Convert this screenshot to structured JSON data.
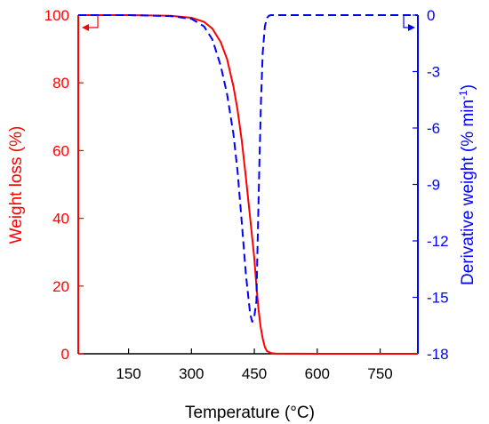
{
  "chart_data": {
    "type": "line",
    "xlabel": "Temperature (°C)",
    "xlim": [
      30,
      840
    ],
    "xticks": [
      150,
      300,
      450,
      600,
      750
    ],
    "y_left": {
      "label": "Weight loss (%)",
      "lim": [
        0,
        100
      ],
      "ticks": [
        0,
        20,
        40,
        60,
        80,
        100
      ],
      "color": "#ff0000"
    },
    "y_right": {
      "label_main": "Derivative weight (% min",
      "label_sup": "-1",
      "label_close": ")",
      "lim": [
        -18,
        0
      ],
      "ticks": [
        0,
        -3,
        -6,
        -9,
        -12,
        -15,
        -18
      ],
      "color": "#0000ff"
    },
    "grid": false,
    "series": [
      {
        "axis": "left",
        "style": "solid",
        "color": "#ff0000",
        "x": [
          30,
          150,
          250,
          300,
          330,
          350,
          370,
          385,
          400,
          410,
          420,
          430,
          440,
          450,
          455,
          460,
          465,
          470,
          475,
          480,
          490,
          500,
          600,
          750,
          840
        ],
        "y": [
          100,
          100,
          99.8,
          99.2,
          98,
          96,
          92,
          87,
          79,
          72,
          63,
          52,
          40,
          28,
          20,
          13,
          8,
          4.5,
          2,
          0.8,
          0.2,
          0.05,
          0,
          0,
          0
        ]
      },
      {
        "axis": "right",
        "style": "dashed",
        "color": "#0000ff",
        "x": [
          30,
          150,
          250,
          300,
          330,
          350,
          370,
          385,
          400,
          410,
          420,
          430,
          440,
          445,
          450,
          455,
          458,
          462,
          466,
          470,
          475,
          480,
          485,
          490,
          500,
          600,
          750,
          840
        ],
        "y": [
          0,
          0,
          -0.05,
          -0.2,
          -0.6,
          -1.3,
          -2.7,
          -4.2,
          -6.3,
          -8.3,
          -11,
          -13.8,
          -15.9,
          -16.3,
          -16,
          -15.2,
          -12,
          -8,
          -4.5,
          -2,
          -0.6,
          -0.15,
          -0.03,
          0,
          0,
          0,
          0,
          0
        ]
      }
    ],
    "annotations": [
      {
        "type": "arrow",
        "direction": "left",
        "color": "#ff0000",
        "points_to": "left axis"
      },
      {
        "type": "arrow",
        "direction": "right",
        "color": "#0000ff",
        "points_to": "right axis"
      }
    ]
  }
}
